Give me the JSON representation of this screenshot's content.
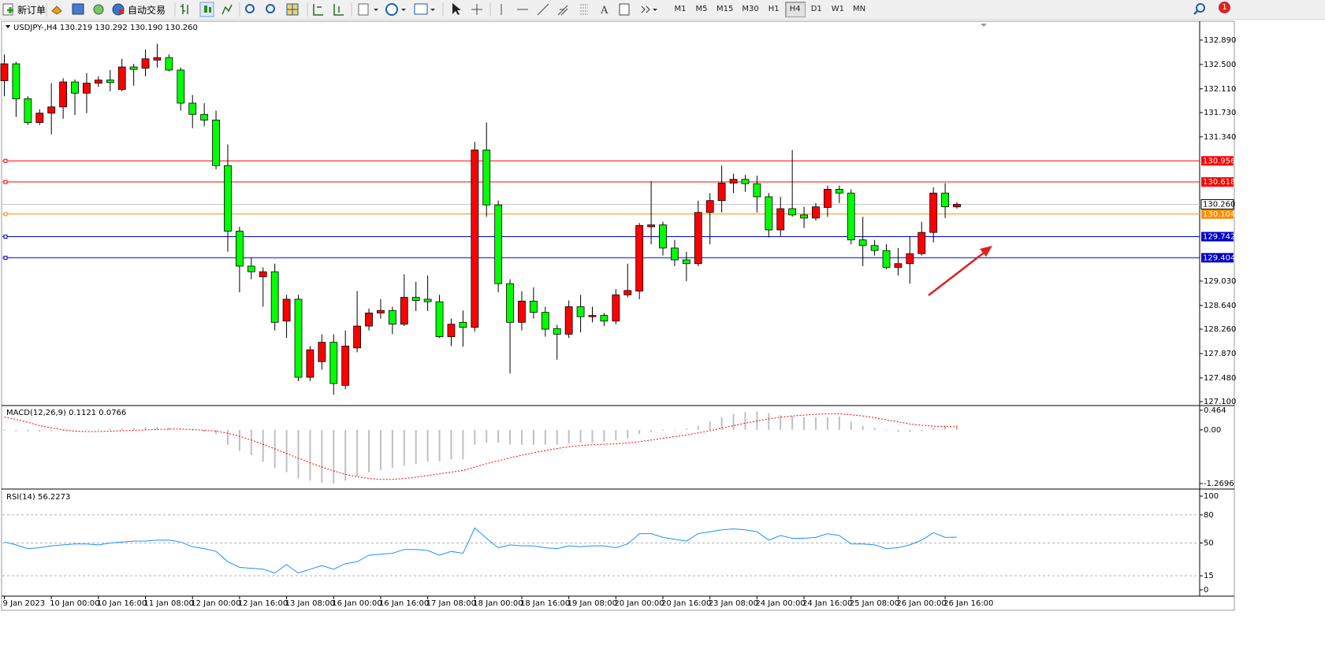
{
  "toolbar": {
    "new_order": "新订单",
    "auto_trading": "自动交易",
    "timeframes": [
      "M1",
      "M5",
      "M15",
      "M30",
      "H1",
      "H4",
      "D1",
      "W1",
      "MN"
    ],
    "active_timeframe": "H4",
    "notification_count": "1"
  },
  "chart_data": [
    {
      "type": "candlestick",
      "title": "USDJPY-,H4  130.219 130.292 130.190 130.260",
      "x": [
        "9 Jan 2023",
        null,
        null,
        null,
        "10 Jan 00:00",
        null,
        null,
        null,
        "10 Jan 16:00",
        null,
        null,
        null,
        "11 Jan 08:00",
        null,
        null,
        null,
        "12 Jan 00:00",
        null,
        null,
        null,
        "12 Jan 16:00",
        null,
        null,
        null,
        "13 Jan 08:00",
        null,
        null,
        null,
        "16 Jan 00:00",
        null,
        null,
        null,
        "16 Jan 16:00",
        null,
        null,
        null,
        "17 Jan 08:00",
        null,
        null,
        null,
        "18 Jan 00:00",
        null,
        null,
        null,
        "18 Jan 16:00",
        null,
        null,
        null,
        "19 Jan 08:00",
        null,
        null,
        null,
        "20 Jan 00:00",
        null,
        null,
        null,
        "20 Jan 16:00",
        null,
        null,
        null,
        "23 Jan 08:00",
        null,
        null,
        null,
        "24 Jan 00:00",
        null,
        null,
        null,
        "24 Jan 16:00",
        null,
        null,
        null,
        "25 Jan 08:00",
        null,
        null,
        null,
        "26 Jan 00:00",
        null,
        null,
        null,
        "26 Jan 16:00",
        null
      ],
      "open": [
        132.24,
        132.51,
        131.95,
        131.57,
        131.72,
        131.82,
        132.22,
        132.04,
        132.2,
        132.25,
        132.1,
        132.46,
        132.44,
        132.57,
        132.61,
        132.41,
        131.88,
        131.7,
        131.61,
        130.88,
        129.83,
        129.27,
        129.1,
        129.18,
        128.39,
        128.74,
        127.49,
        127.74,
        128.05,
        127.36,
        127.96,
        128.31,
        128.52,
        128.56,
        128.34,
        128.77,
        128.74,
        128.7,
        128.14,
        128.37,
        128.29,
        131.13,
        130.25,
        128.99,
        128.37,
        128.71,
        128.53,
        128.27,
        128.18,
        128.62,
        128.46,
        128.48,
        128.39,
        128.81,
        128.87,
        129.9,
        129.93,
        129.56,
        129.37,
        129.31,
        130.13,
        130.32,
        130.6,
        130.66,
        130.59,
        130.38,
        129.85,
        130.19,
        130.09,
        130.04,
        130.21,
        130.5,
        130.44,
        129.69,
        129.6,
        129.52,
        129.25,
        129.31,
        129.47,
        129.81,
        130.44,
        130.219
      ],
      "high": [
        132.66,
        132.54,
        131.99,
        131.78,
        132.2,
        132.28,
        132.26,
        132.36,
        132.31,
        132.41,
        132.59,
        132.51,
        132.74,
        132.83,
        132.66,
        132.45,
        132.01,
        131.88,
        131.76,
        131.22,
        129.9,
        129.4,
        129.25,
        129.31,
        128.81,
        128.81,
        127.99,
        128.18,
        128.18,
        128.24,
        128.87,
        128.59,
        128.74,
        128.62,
        129.14,
        129.02,
        129.12,
        128.81,
        128.43,
        128.56,
        131.26,
        131.57,
        130.32,
        129.06,
        128.87,
        128.93,
        128.62,
        128.33,
        128.72,
        128.81,
        128.62,
        128.52,
        128.9,
        129.31,
        129.96,
        130.63,
        129.98,
        129.69,
        129.5,
        130.32,
        130.44,
        130.88,
        130.75,
        130.73,
        130.72,
        130.44,
        130.38,
        131.13,
        130.22,
        130.28,
        130.56,
        130.56,
        130.5,
        130.06,
        129.69,
        129.62,
        129.56,
        129.75,
        129.98,
        130.53,
        130.6,
        130.292
      ],
      "low": [
        131.99,
        131.66,
        131.53,
        131.53,
        131.38,
        131.63,
        131.69,
        131.72,
        132.14,
        132.07,
        132.07,
        132.16,
        132.31,
        132.45,
        132.39,
        131.76,
        131.48,
        131.51,
        130.82,
        129.5,
        128.85,
        129.06,
        128.62,
        128.24,
        128.12,
        127.43,
        127.43,
        127.61,
        127.21,
        127.3,
        127.89,
        128.24,
        128.43,
        128.18,
        128.31,
        128.55,
        128.55,
        128.12,
        127.99,
        127.98,
        128.22,
        130.06,
        128.85,
        127.55,
        128.24,
        128.43,
        128.14,
        127.77,
        128.12,
        128.21,
        128.37,
        128.31,
        128.34,
        128.77,
        128.74,
        129.62,
        129.44,
        129.27,
        129.03,
        129.27,
        129.62,
        130.13,
        130.44,
        130.46,
        130.13,
        129.73,
        129.75,
        130.06,
        129.88,
        130.0,
        130.06,
        130.28,
        129.62,
        129.27,
        129.44,
        129.22,
        129.12,
        128.99,
        129.44,
        129.65,
        130.04,
        130.19
      ],
      "close": [
        132.51,
        131.95,
        131.57,
        131.72,
        131.82,
        132.22,
        132.04,
        132.2,
        132.25,
        132.21,
        132.46,
        132.42,
        132.59,
        132.61,
        132.41,
        131.88,
        131.7,
        131.61,
        130.88,
        129.83,
        129.27,
        129.18,
        129.18,
        128.37,
        128.74,
        127.49,
        127.93,
        128.05,
        127.39,
        127.99,
        128.31,
        128.52,
        128.56,
        128.34,
        128.77,
        128.72,
        128.7,
        128.14,
        128.34,
        128.29,
        131.13,
        130.25,
        128.99,
        128.37,
        128.71,
        128.53,
        128.26,
        128.18,
        128.62,
        128.46,
        128.48,
        128.39,
        128.81,
        128.88,
        129.92,
        129.93,
        129.56,
        129.37,
        129.31,
        130.13,
        130.32,
        130.6,
        130.66,
        130.59,
        130.38,
        129.85,
        130.19,
        130.09,
        130.04,
        130.22,
        130.5,
        130.44,
        129.69,
        129.6,
        129.52,
        129.25,
        129.31,
        129.47,
        129.81,
        130.44,
        130.22,
        130.26
      ],
      "bull_color": "#ff0000",
      "bear_color": "#00ff00",
      "ylim": [
        127.062,
        133.179
      ],
      "yticks": [
        {
          "value": 132.89,
          "label": "132.890"
        },
        {
          "value": 132.5,
          "label": "132.500"
        },
        {
          "value": 132.11,
          "label": "132.110"
        },
        {
          "value": 131.73,
          "label": "131.730"
        },
        {
          "value": 131.34,
          "label": "131.340"
        },
        {
          "value": 129.03,
          "label": "129.030"
        },
        {
          "value": 128.64,
          "label": "128.640"
        },
        {
          "value": 128.26,
          "label": "128.260"
        },
        {
          "value": 127.87,
          "label": "127.870"
        },
        {
          "value": 127.48,
          "label": "127.480"
        },
        {
          "value": 127.1,
          "label": "127.100"
        }
      ],
      "levels": [
        {
          "value": 130.956,
          "color": "#ff0000"
        },
        {
          "value": 130.618,
          "color": "#ff0000"
        },
        {
          "value": 130.104,
          "color": "#ff8c00"
        },
        {
          "value": 129.742,
          "color": "#0000cc"
        },
        {
          "value": 129.404,
          "color": "#0000cc"
        }
      ],
      "current_price": {
        "value": 130.26,
        "label": "130.260"
      }
    },
    {
      "type": "macd",
      "title": "MACD(12,26,9) 0.1121 0.0766",
      "ylim": [
        -1.2696,
        0.464
      ],
      "yticks": [
        0.464,
        {
          "value": 0,
          "label": "0.00"
        },
        -1.2696
      ],
      "histogram": {
        "color": "#c0c0c0",
        "values": [
          -0.02,
          -0.03,
          -0.04,
          -0.04,
          -0.03,
          -0.02,
          0.0,
          0.01,
          0.02,
          0.03,
          0.04,
          0.05,
          0.06,
          0.07,
          0.05,
          0.02,
          -0.02,
          -0.05,
          -0.1,
          -0.35,
          -0.5,
          -0.6,
          -0.75,
          -0.9,
          -1.0,
          -1.15,
          -1.2,
          -1.25,
          -1.27,
          -1.2,
          -1.1,
          -1.0,
          -0.95,
          -0.9,
          -0.85,
          -0.8,
          -0.75,
          -0.75,
          -0.7,
          -0.7,
          -0.35,
          -0.3,
          -0.3,
          -0.35,
          -0.35,
          -0.35,
          -0.35,
          -0.35,
          -0.32,
          -0.3,
          -0.3,
          -0.28,
          -0.25,
          -0.2,
          -0.1,
          -0.05,
          -0.02,
          0.0,
          0.03,
          0.1,
          0.2,
          0.3,
          0.38,
          0.42,
          0.44,
          0.4,
          0.35,
          0.33,
          0.3,
          0.3,
          0.3,
          0.32,
          0.2,
          0.1,
          0.05,
          -0.02,
          -0.05,
          -0.05,
          -0.03,
          0.05,
          0.1,
          0.1121
        ]
      },
      "signal": {
        "color": "#ff0000",
        "values": [
          0.3,
          0.25,
          0.18,
          0.1,
          0.05,
          0.0,
          -0.03,
          -0.04,
          -0.04,
          -0.03,
          -0.02,
          -0.01,
          0.0,
          0.01,
          0.02,
          0.02,
          0.01,
          -0.01,
          -0.03,
          -0.08,
          -0.15,
          -0.24,
          -0.34,
          -0.45,
          -0.56,
          -0.67,
          -0.78,
          -0.88,
          -0.97,
          -1.05,
          -1.11,
          -1.15,
          -1.17,
          -1.17,
          -1.15,
          -1.12,
          -1.08,
          -1.04,
          -1.0,
          -0.96,
          -0.88,
          -0.8,
          -0.73,
          -0.66,
          -0.6,
          -0.54,
          -0.49,
          -0.44,
          -0.4,
          -0.37,
          -0.35,
          -0.34,
          -0.33,
          -0.31,
          -0.28,
          -0.24,
          -0.2,
          -0.16,
          -0.12,
          -0.07,
          -0.02,
          0.04,
          0.1,
          0.16,
          0.21,
          0.26,
          0.3,
          0.33,
          0.35,
          0.37,
          0.38,
          0.38,
          0.36,
          0.33,
          0.29,
          0.24,
          0.19,
          0.14,
          0.11,
          0.09,
          0.08,
          0.0766
        ]
      }
    },
    {
      "type": "line",
      "title": "RSI(14) 56.2273",
      "ylim": [
        0,
        100
      ],
      "yticks": [
        100,
        80,
        50,
        15,
        0
      ],
      "levels": [
        80,
        50,
        15
      ],
      "color": "#1e90ff",
      "values": [
        51,
        48,
        44,
        45,
        47,
        48,
        49,
        49,
        48,
        50,
        51,
        52,
        52,
        53,
        53,
        51,
        46,
        44,
        41,
        30,
        24,
        23,
        22,
        18,
        27,
        18,
        22,
        26,
        22,
        28,
        30,
        37,
        38,
        39,
        43,
        43,
        42,
        37,
        41,
        39,
        66,
        55,
        45,
        48,
        47,
        47,
        45,
        44,
        47,
        46,
        47,
        47,
        45,
        49,
        60,
        60,
        56,
        54,
        52,
        60,
        62,
        64,
        65,
        64,
        62,
        53,
        58,
        55,
        55,
        56,
        60,
        58,
        49,
        49,
        48,
        44,
        45,
        48,
        53,
        61,
        56,
        56.2273
      ]
    }
  ]
}
